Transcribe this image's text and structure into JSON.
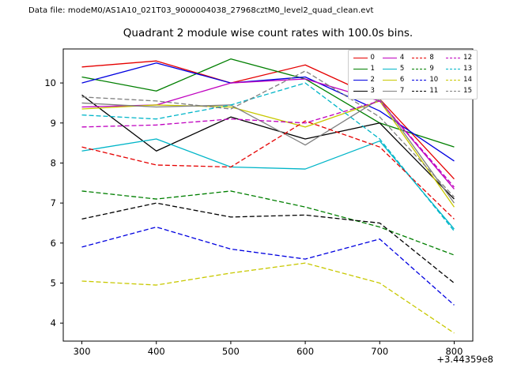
{
  "header": {
    "data_file_label": "Data file: modeM0/AS1A10_021T03_9000004038_27968cztM0_level2_quad_clean.evt"
  },
  "chart_data": {
    "type": "line",
    "title": "Quadrant 2 module wise count rates with 100.0s bins.",
    "xlabel": "",
    "ylabel": "",
    "x": [
      300,
      400,
      500,
      600,
      700,
      800
    ],
    "x_offset_label": "+3.44359e8",
    "xlim": [
      275,
      825
    ],
    "ylim": [
      3.55,
      10.85
    ],
    "xticks": [
      300,
      400,
      500,
      600,
      700,
      800
    ],
    "yticks": [
      4,
      5,
      6,
      7,
      8,
      9,
      10
    ],
    "grid": false,
    "legend_position": "upper right",
    "legend_columns": 4,
    "series": [
      {
        "name": "0",
        "color": "#e50000",
        "dash": "solid",
        "values": [
          10.4,
          10.55,
          10.0,
          10.45,
          9.6,
          7.6
        ]
      },
      {
        "name": "1",
        "color": "#007f00",
        "dash": "solid",
        "values": [
          10.15,
          9.8,
          10.6,
          10.1,
          9.0,
          8.4
        ]
      },
      {
        "name": "2",
        "color": "#0000e0",
        "dash": "solid",
        "values": [
          10.0,
          10.5,
          10.0,
          10.15,
          9.3,
          8.05
        ]
      },
      {
        "name": "3",
        "color": "#000000",
        "dash": "solid",
        "values": [
          9.7,
          8.3,
          9.15,
          8.6,
          9.0,
          7.1
        ]
      },
      {
        "name": "4",
        "color": "#bf00bf",
        "dash": "solid",
        "values": [
          9.4,
          9.45,
          10.0,
          10.1,
          9.55,
          7.35
        ]
      },
      {
        "name": "5",
        "color": "#00b5c8",
        "dash": "solid",
        "values": [
          8.3,
          8.6,
          7.9,
          7.85,
          8.55,
          6.35
        ]
      },
      {
        "name": "6",
        "color": "#c8c800",
        "dash": "solid",
        "values": [
          9.35,
          9.45,
          9.4,
          8.9,
          9.55,
          6.9
        ]
      },
      {
        "name": "7",
        "color": "#7f7f7f",
        "dash": "solid",
        "values": [
          9.5,
          9.4,
          9.45,
          8.45,
          9.6,
          7.0
        ]
      },
      {
        "name": "8",
        "color": "#e50000",
        "dash": "dashed",
        "values": [
          8.4,
          7.95,
          7.9,
          9.05,
          8.4,
          6.6
        ]
      },
      {
        "name": "9",
        "color": "#007f00",
        "dash": "dashed",
        "values": [
          7.3,
          7.1,
          7.3,
          6.9,
          6.4,
          5.7
        ]
      },
      {
        "name": "10",
        "color": "#0000e0",
        "dash": "dashed",
        "values": [
          5.9,
          6.4,
          5.85,
          5.6,
          6.1,
          4.45
        ]
      },
      {
        "name": "11",
        "color": "#000000",
        "dash": "dashed",
        "values": [
          6.6,
          7.0,
          6.65,
          6.7,
          6.5,
          5.0
        ]
      },
      {
        "name": "12",
        "color": "#bf00bf",
        "dash": "dashed",
        "values": [
          8.9,
          8.95,
          9.1,
          9.0,
          9.55,
          7.4
        ]
      },
      {
        "name": "13",
        "color": "#00b5c8",
        "dash": "dashed",
        "values": [
          9.2,
          9.1,
          9.45,
          10.0,
          8.6,
          6.3
        ]
      },
      {
        "name": "14",
        "color": "#c8c800",
        "dash": "dashed",
        "values": [
          5.05,
          4.95,
          5.25,
          5.5,
          5.0,
          3.75
        ]
      },
      {
        "name": "15",
        "color": "#7f7f7f",
        "dash": "dashed",
        "values": [
          9.65,
          9.55,
          9.35,
          10.3,
          9.15,
          7.15
        ]
      }
    ]
  }
}
